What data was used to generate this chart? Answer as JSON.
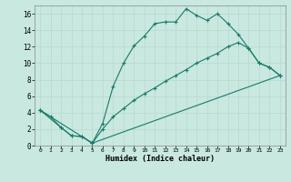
{
  "xlabel": "Humidex (Indice chaleur)",
  "background_color": "#c8e8e0",
  "grid_color": "#b8d8d0",
  "line_color": "#1a7a6a",
  "xlim": [
    -0.5,
    23.5
  ],
  "ylim": [
    0,
    17
  ],
  "xticks": [
    0,
    1,
    2,
    3,
    4,
    5,
    6,
    7,
    8,
    9,
    10,
    11,
    12,
    13,
    14,
    15,
    16,
    17,
    18,
    19,
    20,
    21,
    22,
    23
  ],
  "yticks": [
    0,
    2,
    4,
    6,
    8,
    10,
    12,
    14,
    16
  ],
  "line1_x": [
    0,
    1,
    2,
    3,
    4,
    5,
    6,
    7,
    8,
    9,
    10,
    11,
    12,
    13,
    14,
    15,
    16,
    17,
    18,
    19,
    20,
    21,
    22,
    23
  ],
  "line1_y": [
    4.3,
    3.5,
    2.2,
    1.2,
    1.1,
    0.3,
    2.7,
    7.2,
    10.0,
    12.1,
    13.3,
    14.8,
    15.0,
    15.0,
    16.6,
    15.8,
    15.2,
    16.0,
    14.8,
    13.5,
    11.8,
    10.0,
    9.5,
    8.5
  ],
  "line2_x": [
    0,
    2,
    3,
    4,
    5,
    6,
    7,
    8,
    9,
    10,
    11,
    12,
    13,
    14,
    15,
    16,
    17,
    18,
    19,
    20,
    21,
    22,
    23
  ],
  "line2_y": [
    4.3,
    2.2,
    1.2,
    1.1,
    0.3,
    2.0,
    3.5,
    4.5,
    5.5,
    6.3,
    7.0,
    7.8,
    8.5,
    9.2,
    10.0,
    10.6,
    11.2,
    12.0,
    12.5,
    11.8,
    10.0,
    9.5,
    8.5
  ],
  "line3_x": [
    0,
    5,
    23
  ],
  "line3_y": [
    4.3,
    0.3,
    8.5
  ]
}
